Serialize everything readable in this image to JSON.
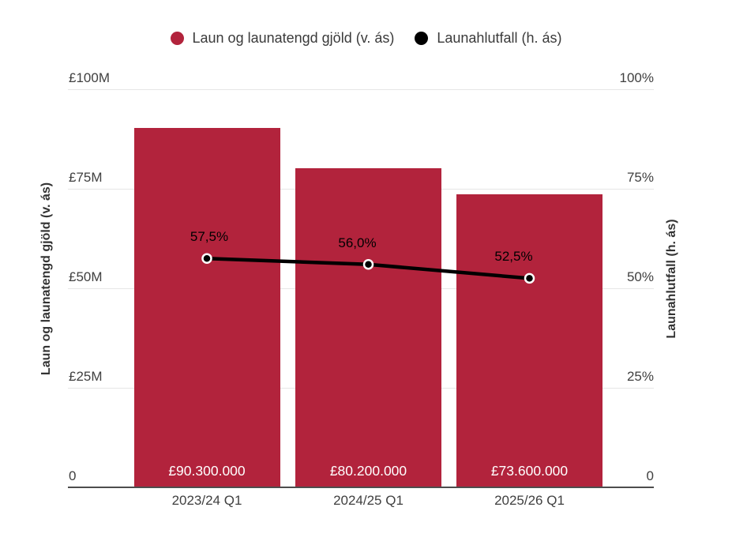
{
  "chart_data": {
    "type": "combo",
    "categories": [
      "2023/24 Q1",
      "2024/25 Q1",
      "2025/26 Q1"
    ],
    "series": [
      {
        "name": "Laun og launatengd gjöld (v. ás)",
        "type": "bar",
        "axis": "left",
        "color": "#b2233c",
        "values": [
          90300000,
          80200000,
          73600000
        ],
        "data_labels": [
          "£90.300.000",
          "£80.200.000",
          "£73.600.000"
        ]
      },
      {
        "name": "Launahlutfall (h. ás)",
        "type": "line",
        "axis": "right",
        "color": "#000000",
        "values": [
          57.5,
          56.0,
          52.5
        ],
        "data_labels": [
          "57,5%",
          "56,0%",
          "52,5%"
        ]
      }
    ],
    "left_axis": {
      "title": "Laun og launatengd gjöld (v. ás)",
      "min": 0,
      "max": 100000000,
      "ticks": [
        {
          "value": 0,
          "label": "0"
        },
        {
          "value": 25000000,
          "label": "£25M"
        },
        {
          "value": 50000000,
          "label": "£50M"
        },
        {
          "value": 75000000,
          "label": "£75M"
        },
        {
          "value": 100000000,
          "label": "£100M"
        }
      ]
    },
    "right_axis": {
      "title": "Launahlutfall (h. ás)",
      "min": 0,
      "max": 100,
      "ticks": [
        {
          "value": 0,
          "label": "0"
        },
        {
          "value": 25,
          "label": "25%"
        },
        {
          "value": 50,
          "label": "50%"
        },
        {
          "value": 75,
          "label": "75%"
        },
        {
          "value": 100,
          "label": "100%"
        }
      ]
    },
    "grid": true,
    "legend_position": "top"
  },
  "colors": {
    "background": "#ffffff",
    "gridline": "#e6e6e6",
    "axis_line": "#4d4d4d",
    "tick_text": "#404040",
    "x_label_text": "#404040",
    "axis_title_text": "#333333",
    "legend_text": "#3a3a3a",
    "bar_value_text": "#ffffff",
    "point_label_text": "#000000",
    "point_ring": "#ffffff"
  }
}
